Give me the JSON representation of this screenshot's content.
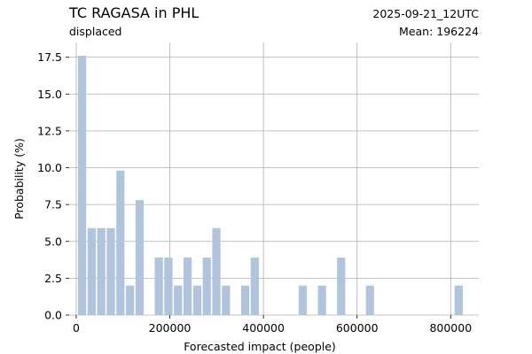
{
  "colors": {
    "bar": "#b0c4de",
    "date": "#ff0000",
    "grid": "#b0b0b0"
  },
  "header": {
    "title": "TC RAGASA in PHL",
    "subtitle": "displaced",
    "date": "2025-09-21_12UTC",
    "mean": "Mean: 196224"
  },
  "chart_data": {
    "type": "bar",
    "title": "TC RAGASA in PHL",
    "xlabel": "Forecasted impact (people)",
    "ylabel": "Probability (%)",
    "xlim": [
      -15000,
      860000
    ],
    "ylim": [
      0,
      18.5
    ],
    "xticks": [
      0,
      200000,
      400000,
      600000,
      800000
    ],
    "xtick_labels": [
      "0",
      "200000",
      "400000",
      "600000",
      "800000"
    ],
    "yticks": [
      0.0,
      2.5,
      5.0,
      7.5,
      10.0,
      12.5,
      15.0,
      17.5
    ],
    "ytick_labels": [
      "0.0",
      "2.5",
      "5.0",
      "7.5",
      "10.0",
      "12.5",
      "15.0",
      "17.5"
    ],
    "grid": true,
    "bin_width": 20500,
    "bins": [
      {
        "x": 12500,
        "value": 17.6
      },
      {
        "x": 33000,
        "value": 5.9
      },
      {
        "x": 53500,
        "value": 5.9
      },
      {
        "x": 74000,
        "value": 5.9
      },
      {
        "x": 94500,
        "value": 9.8
      },
      {
        "x": 115000,
        "value": 2.0
      },
      {
        "x": 135500,
        "value": 7.8
      },
      {
        "x": 176500,
        "value": 3.9
      },
      {
        "x": 197000,
        "value": 3.9
      },
      {
        "x": 217500,
        "value": 2.0
      },
      {
        "x": 238000,
        "value": 3.9
      },
      {
        "x": 258500,
        "value": 2.0
      },
      {
        "x": 279000,
        "value": 3.9
      },
      {
        "x": 299500,
        "value": 5.9
      },
      {
        "x": 320000,
        "value": 2.0
      },
      {
        "x": 361000,
        "value": 2.0
      },
      {
        "x": 381500,
        "value": 3.9
      },
      {
        "x": 484000,
        "value": 2.0
      },
      {
        "x": 525000,
        "value": 2.0
      },
      {
        "x": 566000,
        "value": 3.9
      },
      {
        "x": 627500,
        "value": 2.0
      },
      {
        "x": 817000,
        "value": 2.0
      }
    ]
  }
}
